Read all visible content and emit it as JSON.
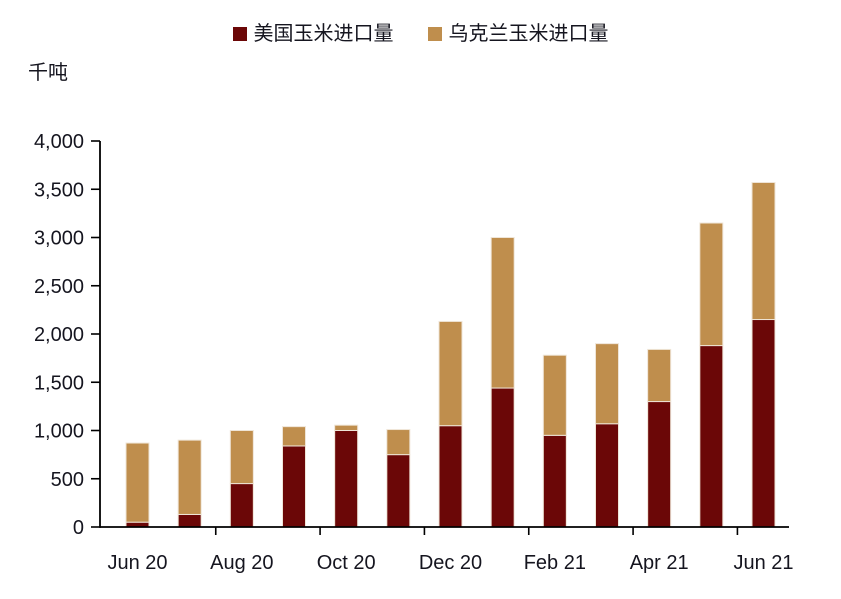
{
  "unit_label": "千吨",
  "legend": {
    "items": [
      {
        "label": "美国玉米进口量",
        "color": "#6B0707"
      },
      {
        "label": "乌克兰玉米进口量",
        "color": "#BF8E4D"
      }
    ]
  },
  "chart_data": {
    "type": "bar",
    "stacked": true,
    "title": "",
    "ylabel": "千吨",
    "xlabel": "",
    "grid": false,
    "legend_position": "top",
    "categories": [
      "Jun 20",
      "Jul 20",
      "Aug 20",
      "Sep 20",
      "Oct 20",
      "Nov 20",
      "Dec 20",
      "Jan 21",
      "Feb 21",
      "Mar 21",
      "Apr 21",
      "May 21",
      "Jun 21"
    ],
    "series": [
      {
        "name": "美国玉米进口量",
        "key": "us",
        "color": "#6B0707",
        "values": [
          50,
          130,
          450,
          840,
          1000,
          750,
          1050,
          1440,
          950,
          1070,
          1300,
          1880,
          2150
        ]
      },
      {
        "name": "乌克兰玉米进口量",
        "key": "ua",
        "color": "#BF8E4D",
        "values": [
          820,
          770,
          550,
          200,
          55,
          260,
          1080,
          1560,
          830,
          830,
          540,
          1270,
          1420
        ]
      }
    ],
    "totals": [
      870,
      900,
      1000,
      1040,
      1055,
      1010,
      2130,
      3000,
      1780,
      1900,
      1840,
      3150,
      3570
    ],
    "ylim": [
      0,
      4000
    ],
    "y_ticks": [
      {
        "value": 0,
        "label": "0"
      },
      {
        "value": 500,
        "label": "500"
      },
      {
        "value": 1000,
        "label": "1,000"
      },
      {
        "value": 1500,
        "label": "1,500"
      },
      {
        "value": 2000,
        "label": "2,000"
      },
      {
        "value": 2500,
        "label": "2,500"
      },
      {
        "value": 3000,
        "label": "3,000"
      },
      {
        "value": 3500,
        "label": "3,500"
      },
      {
        "value": 4000,
        "label": "4,000"
      }
    ],
    "x_tick_labels": [
      "Jun 20",
      "Aug 20",
      "Oct 20",
      "Dec 20",
      "Feb 21",
      "Apr 21",
      "Jun 21"
    ],
    "labeled_category_indices": [
      0,
      2,
      4,
      6,
      8,
      10,
      12
    ]
  },
  "style": {
    "axis_color": "#000000",
    "text_color": "#15151f",
    "bar_edge_color": "#efe5d7"
  }
}
